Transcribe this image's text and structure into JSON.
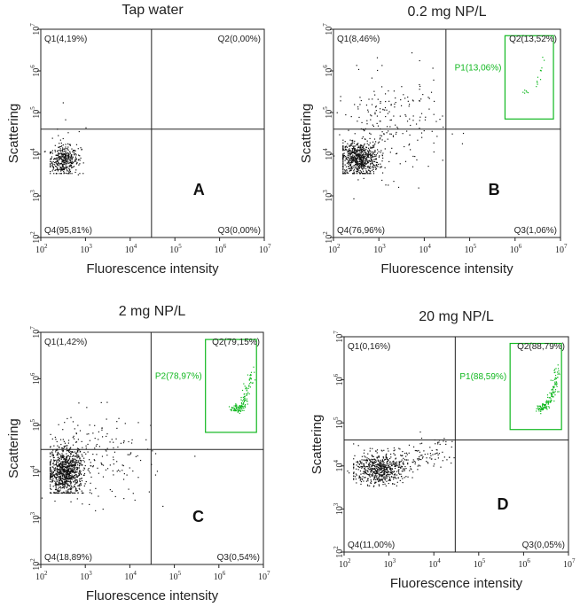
{
  "chart_data": [
    {
      "type": "scatter",
      "title": "Tap water",
      "xlabel": "Fluorescence intensity",
      "ylabel": "Scattering",
      "xscale": "log",
      "yscale": "log",
      "xlim": [
        100,
        10000000
      ],
      "ylim": [
        100,
        10000000
      ],
      "x_ticks": [
        "10",
        "10",
        "10",
        "10",
        "10",
        "10"
      ],
      "x_tick_exp": [
        "2",
        "3",
        "4",
        "5",
        "6",
        "7"
      ],
      "y_ticks": [
        "10",
        "10",
        "10",
        "10",
        "10",
        "10"
      ],
      "y_tick_exp": [
        "2",
        "3",
        "4",
        "5",
        "6",
        "7"
      ],
      "quadrant_gate": {
        "x": 30000,
        "y": 40000
      },
      "quadrants": {
        "Q1": "Q1(4,19%)",
        "Q2": "Q2(0,00%)",
        "Q3": "Q3(0,00%)",
        "Q4": "Q4(95,81%)"
      },
      "gate": null,
      "panel_letter": "A",
      "clusters": [
        {
          "name": "main",
          "cx_log": 2.5,
          "cy_log": 3.85,
          "sx": 0.16,
          "sy": 0.17,
          "n": 340
        },
        {
          "name": "spread",
          "cx_log": 2.6,
          "cy_log": 4.1,
          "sx": 0.25,
          "sy": 0.35,
          "n": 50
        }
      ]
    },
    {
      "type": "scatter",
      "title": "0.2 mg NP/L",
      "xlabel": "Fluorescence intensity",
      "ylabel": "Scattering",
      "xscale": "log",
      "yscale": "log",
      "xlim": [
        100,
        10000000
      ],
      "ylim": [
        100,
        10000000
      ],
      "x_ticks": [
        "10",
        "10",
        "10",
        "10",
        "10",
        "10"
      ],
      "x_tick_exp": [
        "2",
        "3",
        "4",
        "5",
        "6",
        "7"
      ],
      "y_ticks": [
        "10",
        "10",
        "10",
        "10",
        "10",
        "10"
      ],
      "y_tick_exp": [
        "2",
        "3",
        "4",
        "5",
        "6",
        "7"
      ],
      "quadrant_gate": {
        "x": 30000,
        "y": 40000
      },
      "quadrants": {
        "Q1": "Q1(8,46%)",
        "Q2": "Q2(13,52%)",
        "Q3": "Q3(1,06%)",
        "Q4": "Q4(76,96%)"
      },
      "gate": {
        "label": "P1(13,06%)",
        "x_range": [
          600000,
          7000000
        ],
        "y_range": [
          70000,
          7000000
        ]
      },
      "panel_letter": "B",
      "clusters": [
        {
          "name": "main",
          "cx_log": 2.55,
          "cy_log": 3.9,
          "sx": 0.22,
          "sy": 0.2,
          "n": 700
        },
        {
          "name": "spread",
          "cx_log": 3.2,
          "cy_log": 4.7,
          "sx": 0.6,
          "sy": 0.6,
          "n": 220
        },
        {
          "name": "gate",
          "cx_log": 6.45,
          "cy_log": 5.75,
          "sx": 0.08,
          "sy": 0.08,
          "n": 18
        }
      ]
    },
    {
      "type": "scatter",
      "title": "2 mg NP/L",
      "xlabel": "Fluorescence intensity",
      "ylabel": "Scattering",
      "xscale": "log",
      "yscale": "log",
      "xlim": [
        100,
        10000000
      ],
      "ylim": [
        100,
        10000000
      ],
      "x_ticks": [
        "10",
        "10",
        "10",
        "10",
        "10",
        "10"
      ],
      "x_tick_exp": [
        "2",
        "3",
        "4",
        "5",
        "6",
        "7"
      ],
      "y_ticks": [
        "10",
        "10",
        "10",
        "10",
        "10",
        "10"
      ],
      "y_tick_exp": [
        "2",
        "3",
        "4",
        "5",
        "6",
        "7"
      ],
      "quadrant_gate": {
        "x": 30000,
        "y": 30000
      },
      "quadrants": {
        "Q1": "Q1(1,42%)",
        "Q2": "Q2(79,15%)",
        "Q3": "Q3(0,54%)",
        "Q4": "Q4(18,89%)"
      },
      "gate": {
        "label": "P2(78,97%)",
        "x_range": [
          500000,
          7000000
        ],
        "y_range": [
          70000,
          7000000
        ]
      },
      "panel_letter": "C",
      "clusters": [
        {
          "name": "main",
          "cx_log": 2.55,
          "cy_log": 4.0,
          "sx": 0.2,
          "sy": 0.25,
          "n": 900
        },
        {
          "name": "spread",
          "cx_log": 3.3,
          "cy_log": 4.3,
          "sx": 0.6,
          "sy": 0.5,
          "n": 180
        },
        {
          "name": "gate",
          "cx_log": 6.55,
          "cy_log": 5.6,
          "sx": 0.15,
          "sy": 0.35,
          "n": 140
        }
      ]
    },
    {
      "type": "scatter",
      "title": "20 mg NP/L",
      "xlabel": "Fluorescence intensity",
      "ylabel": "Scattering",
      "xscale": "log",
      "yscale": "log",
      "xlim": [
        100,
        10000000
      ],
      "ylim": [
        100,
        10000000
      ],
      "x_ticks": [
        "10",
        "10",
        "10",
        "10",
        "10",
        "10"
      ],
      "x_tick_exp": [
        "2",
        "3",
        "4",
        "5",
        "6",
        "7"
      ],
      "y_ticks": [
        "10",
        "10",
        "10",
        "10",
        "10",
        "10"
      ],
      "y_tick_exp": [
        "2",
        "3",
        "4",
        "5",
        "6",
        "7"
      ],
      "quadrant_gate": {
        "x": 30000,
        "y": 40000
      },
      "quadrants": {
        "Q1": "Q1(0,16%)",
        "Q2": "Q2(88,79%)",
        "Q3": "Q3(0,05%)",
        "Q4": "Q4(11,00%)"
      },
      "gate": {
        "label": "P1(88,59%)",
        "x_range": [
          500000,
          7000000
        ],
        "y_range": [
          70000,
          7000000
        ]
      },
      "panel_letter": "D",
      "clusters": [
        {
          "name": "main",
          "cx_log": 2.75,
          "cy_log": 3.95,
          "sx": 0.28,
          "sy": 0.18,
          "n": 550
        },
        {
          "name": "diag",
          "cx_log": 3.4,
          "cy_log": 4.3,
          "sx": 0.5,
          "sy": 0.35,
          "n": 160
        },
        {
          "name": "gate",
          "cx_log": 6.55,
          "cy_log": 5.6,
          "sx": 0.15,
          "sy": 0.35,
          "n": 150
        }
      ]
    }
  ],
  "colors": {
    "dots": "#111111",
    "gate": "#11b820",
    "axis": "#222222"
  }
}
